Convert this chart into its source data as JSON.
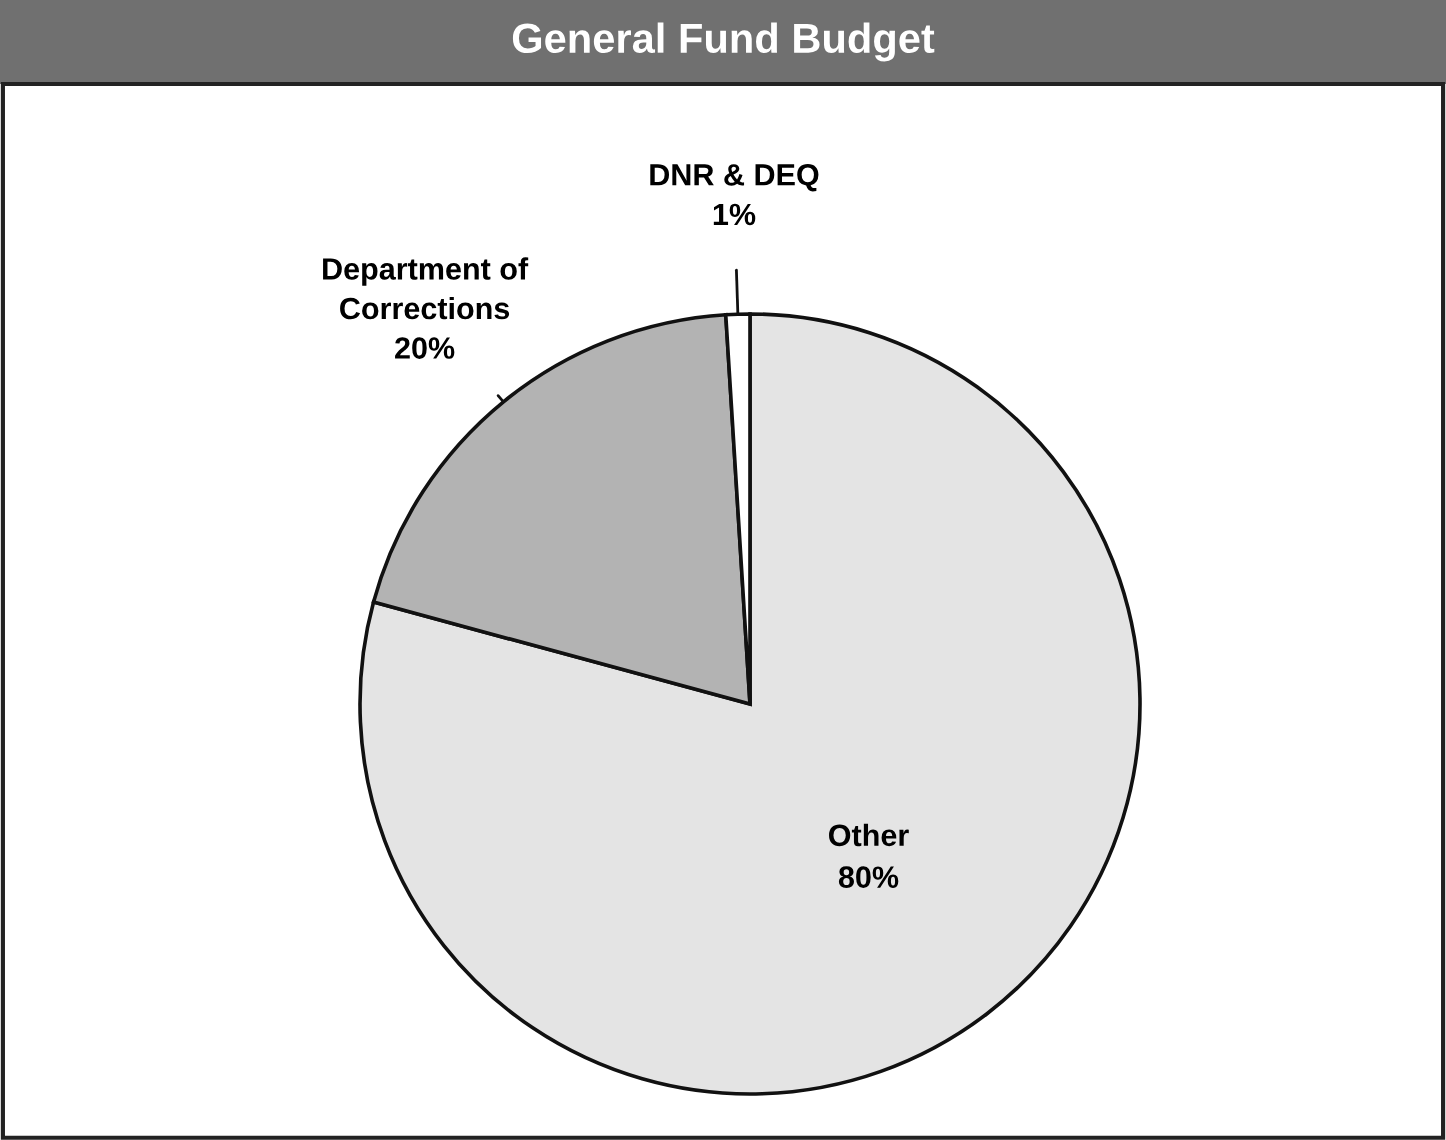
{
  "chart_data": {
    "type": "pie",
    "title": "General Fund Budget",
    "categories": [
      "Other",
      "Department of Corrections",
      "DNR & DEQ"
    ],
    "values": [
      80,
      20,
      1
    ],
    "value_labels": [
      "80%",
      "20%",
      "1%"
    ],
    "colors": [
      "#e4e4e4",
      "#b3b3b3",
      "#ffffff"
    ]
  }
}
